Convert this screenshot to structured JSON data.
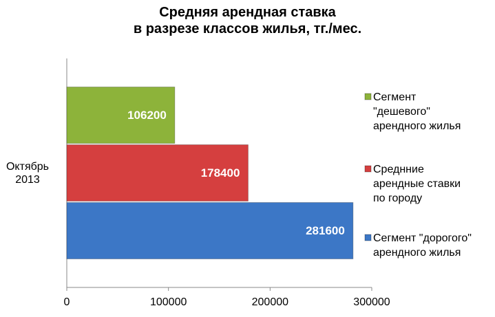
{
  "chart_data": {
    "type": "bar",
    "orientation": "horizontal",
    "title": "Средняя арендная ставка\nв разрезе классов жилья, тг./мес.",
    "categories": [
      "Октябрь\n2013"
    ],
    "series": [
      {
        "name": "Сегмент\n\"дешевого\"\nарендного жилья",
        "color": "#8db33a",
        "values": [
          106200
        ]
      },
      {
        "name": "Среднние\nарендные ставки\nпо городу",
        "color": "#d53f3f",
        "values": [
          178400
        ]
      },
      {
        "name": "Сегмент \"дорогого\"\nарендного жилья",
        "color": "#3c77c6",
        "values": [
          281600
        ]
      }
    ],
    "xlim": [
      0,
      300000
    ],
    "xticks": [
      0,
      100000,
      200000,
      300000
    ],
    "legend": "right",
    "data_labels": true
  }
}
